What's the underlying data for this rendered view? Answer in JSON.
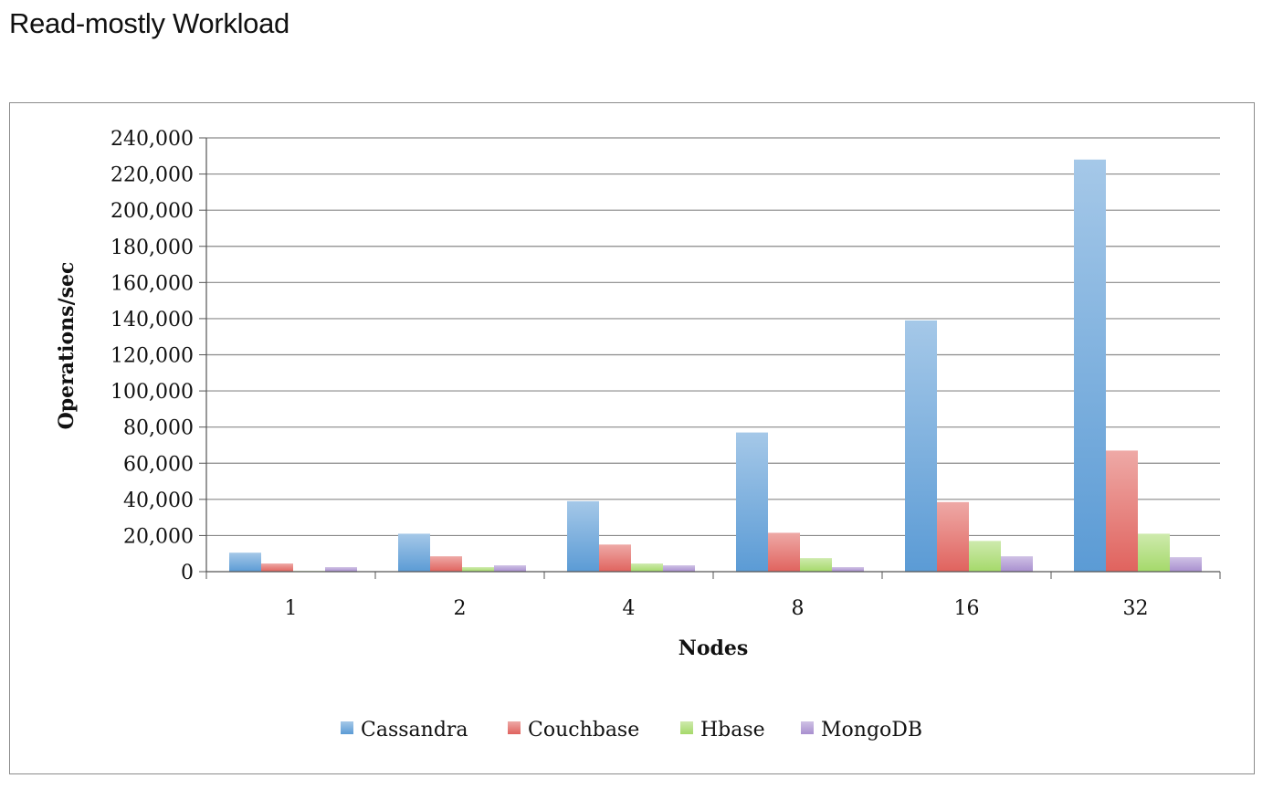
{
  "page": {
    "title": "Read-mostly Workload"
  },
  "chart_data": {
    "type": "bar",
    "title": "",
    "xlabel": "Nodes",
    "ylabel": "Operations/sec",
    "categories": [
      "1",
      "2",
      "4",
      "8",
      "16",
      "32"
    ],
    "ylim": [
      0,
      240000
    ],
    "ytick_step": 20000,
    "ytick_labels": [
      "0",
      "20,000",
      "40,000",
      "60,000",
      "80,000",
      "100,000",
      "120,000",
      "140,000",
      "160,000",
      "180,000",
      "200,000",
      "220,000",
      "240,000"
    ],
    "grid": true,
    "legend_position": "bottom",
    "series": [
      {
        "name": "Cassandra",
        "color": "#5b9bd5",
        "values": [
          10500,
          21000,
          39000,
          77000,
          139000,
          228000
        ]
      },
      {
        "name": "Couchbase",
        "color": "#e0635e",
        "values": [
          4500,
          8500,
          15000,
          21500,
          38500,
          67000
        ]
      },
      {
        "name": "Hbase",
        "color": "#a5d96a",
        "values": [
          400,
          2500,
          4500,
          7500,
          17000,
          21000
        ]
      },
      {
        "name": "MongoDB",
        "color": "#a88fcf",
        "values": [
          2500,
          3500,
          3500,
          2500,
          8500,
          8000
        ]
      }
    ]
  }
}
